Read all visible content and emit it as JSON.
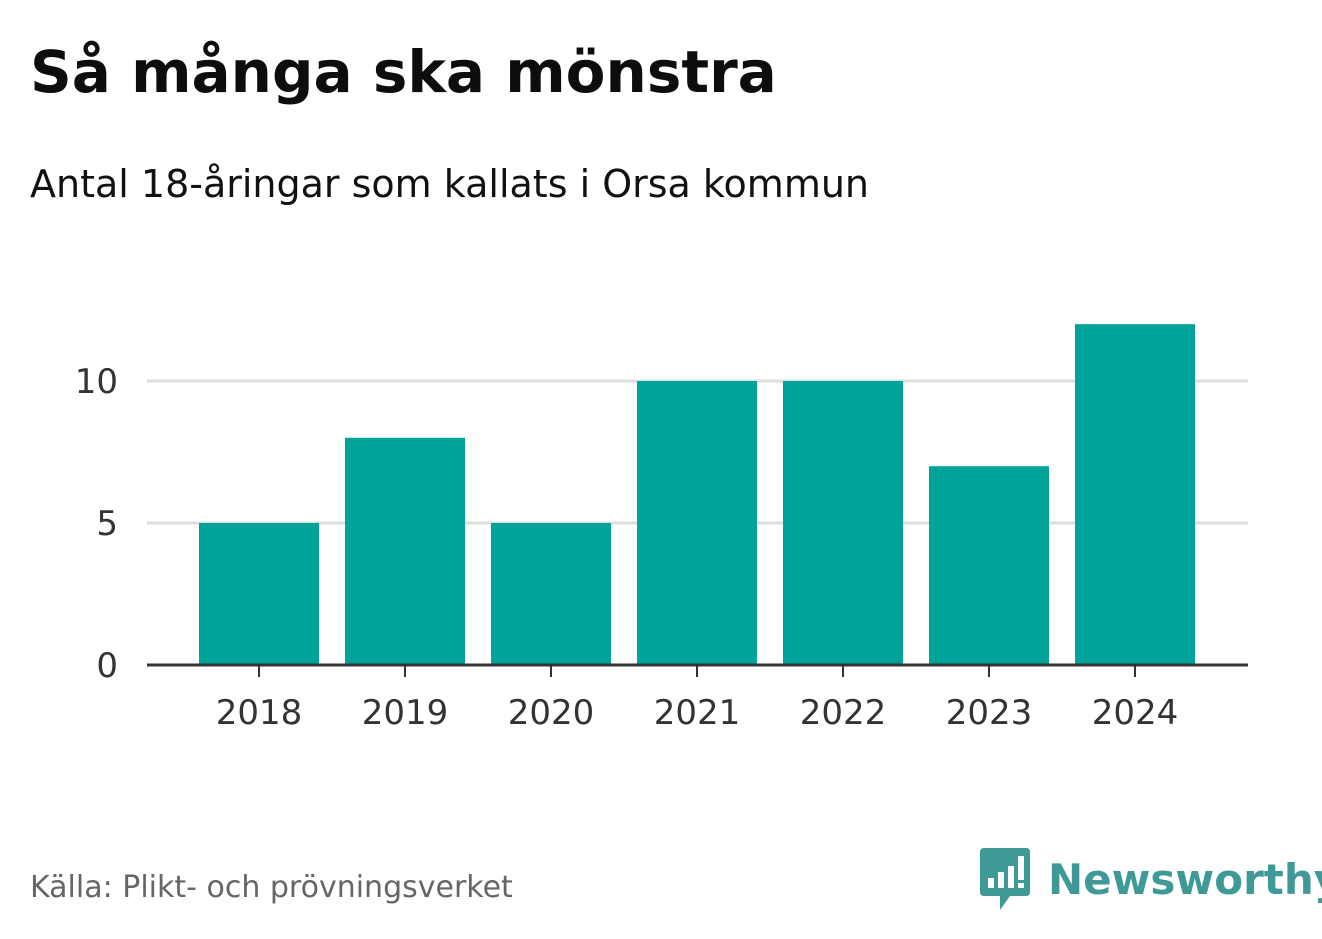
{
  "chart_data": {
    "type": "bar",
    "title": "Så många ska mönstra",
    "subtitle": "Antal 18-åringar som kallats i Orsa kommun",
    "categories": [
      "2018",
      "2019",
      "2020",
      "2021",
      "2022",
      "2023",
      "2024"
    ],
    "values": [
      5,
      8,
      5,
      10,
      10,
      7,
      12
    ],
    "xlabel": "",
    "ylabel": "",
    "ylim": [
      0,
      12
    ],
    "yticks": [
      0,
      5,
      10
    ],
    "grid": true,
    "bar_color": "#00a39a",
    "grid_color": "#dddddd",
    "axis_color": "#333333"
  },
  "footer": {
    "source": "Källa: Plikt- och prövningsverket",
    "brand": "Newsworthy",
    "brand_color": "#3f9a97",
    "brand_icon": "newsworthy-logo-icon"
  }
}
